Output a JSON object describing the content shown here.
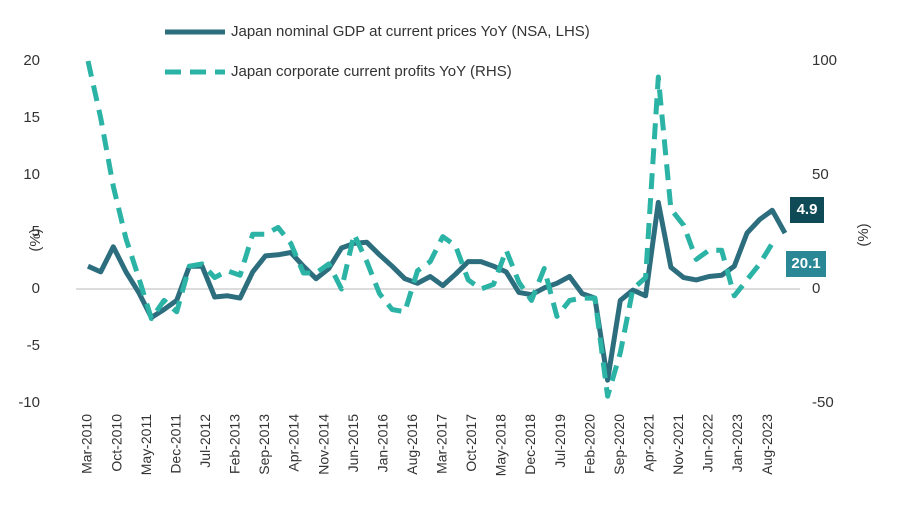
{
  "chart_data": {
    "type": "line",
    "ylabel": "(%)",
    "y2label": "(%)",
    "x": [
      "Mar-2010",
      "Jun-2010",
      "Sep-2010",
      "Dec-2010",
      "Mar-2011",
      "Jun-2011",
      "Sep-2011",
      "Dec-2011",
      "Mar-2012",
      "Jun-2012",
      "Sep-2012",
      "Dec-2012",
      "Mar-2013",
      "Jun-2013",
      "Sep-2013",
      "Dec-2013",
      "Mar-2014",
      "Jun-2014",
      "Sep-2014",
      "Dec-2014",
      "Mar-2015",
      "Jun-2015",
      "Sep-2015",
      "Dec-2015",
      "Mar-2016",
      "Jun-2016",
      "Sep-2016",
      "Dec-2016",
      "Mar-2017",
      "Jun-2017",
      "Sep-2017",
      "Dec-2017",
      "Mar-2018",
      "Jun-2018",
      "Sep-2018",
      "Dec-2018",
      "Mar-2019",
      "Jun-2019",
      "Sep-2019",
      "Dec-2019",
      "Mar-2020",
      "Jun-2020",
      "Sep-2020",
      "Dec-2020",
      "Mar-2021",
      "Jun-2021",
      "Sep-2021",
      "Dec-2021",
      "Mar-2022",
      "Jun-2022",
      "Sep-2022",
      "Dec-2022",
      "Mar-2023",
      "Jun-2023",
      "Sep-2023",
      "Dec-2023"
    ],
    "xticks": [
      "Mar-2010",
      "Oct-2010",
      "May-2011",
      "Dec-2011",
      "Jul-2012",
      "Feb-2013",
      "Sep-2013",
      "Apr-2014",
      "Nov-2014",
      "Jun-2015",
      "Jan-2016",
      "Aug-2016",
      "Mar-2017",
      "Oct-2017",
      "May-2018",
      "Dec-2018",
      "Jul-2019",
      "Feb-2020",
      "Sep-2020",
      "Apr-2021",
      "Nov-2021",
      "Jun-2022",
      "Jan-2023",
      "Aug-2023"
    ],
    "ylim": [
      -10,
      20
    ],
    "yticks": [
      -10,
      -5,
      0,
      5,
      10,
      15,
      20
    ],
    "y2lim": [
      -50,
      100
    ],
    "y2ticks": [
      -50,
      0,
      50,
      100
    ],
    "series": [
      {
        "name": "Japan nominal GDP at current prices YoY (NSA, LHS)",
        "color": "#2d6e7e",
        "dash": false,
        "values": [
          2.0,
          1.5,
          3.7,
          1.5,
          -0.3,
          -2.5,
          -1.8,
          -1.0,
          2.0,
          2.0,
          -0.7,
          -0.6,
          -0.8,
          1.5,
          2.9,
          3.0,
          3.2,
          2.0,
          0.9,
          1.8,
          3.6,
          4.0,
          4.1,
          3.0,
          2.0,
          0.9,
          0.5,
          1.1,
          0.3,
          1.3,
          2.4,
          2.4,
          2.0,
          1.5,
          -0.3,
          -0.5,
          0.1,
          0.5,
          1.1,
          -0.4,
          -0.8,
          -8.0,
          -1.0,
          -0.1,
          -0.6,
          7.6,
          1.9,
          1.0,
          0.8,
          1.1,
          1.2,
          2.0,
          4.9,
          6.1,
          6.9,
          4.9
        ],
        "label_color": "#0f4a57"
      },
      {
        "name": "Japan corporate current profits YoY (RHS)",
        "color": "#2bb3a6",
        "dash": true,
        "axis": "y2",
        "values": [
          100,
          75,
          45,
          22,
          5,
          -13,
          -5,
          -10,
          10,
          11,
          5,
          8,
          6,
          24,
          24,
          27,
          20,
          7,
          7,
          11,
          0,
          24,
          12,
          -2,
          -9,
          -10,
          8,
          12,
          23,
          19,
          4,
          0,
          2,
          17,
          3,
          -5,
          9,
          -12,
          -5,
          -4,
          -4,
          -47,
          -28,
          0,
          5,
          93,
          35,
          28,
          13,
          17,
          17,
          -3,
          4,
          11,
          20.1,
          null
        ],
        "label_color": "#2a8795"
      }
    ]
  }
}
